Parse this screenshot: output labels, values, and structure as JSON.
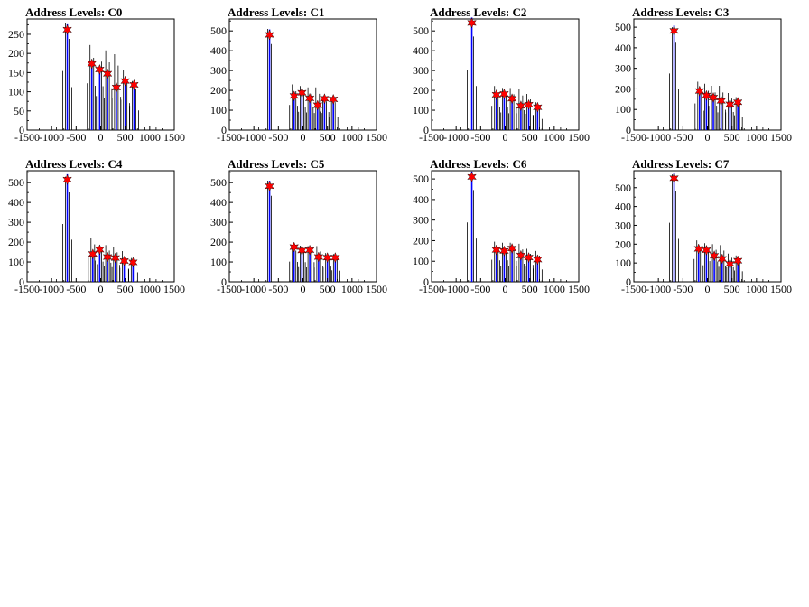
{
  "colors": {
    "background": "#ffffff",
    "fit_line": "#0000ff",
    "raw_histogram": "#000000",
    "peak_marker": "#ff0000"
  },
  "chart_data": [
    {
      "type": "bar",
      "title": "Address Levels: C0",
      "xlim": [
        -1500,
        1500
      ],
      "ylim": [
        0,
        290
      ],
      "xticks": [
        -1500,
        -1000,
        -500,
        0,
        500,
        1000,
        1500
      ],
      "xtick_labels": [
        "-1500",
        "-1000",
        "-500",
        "0",
        "500",
        "1000",
        "1500"
      ],
      "yticks": [
        0,
        50,
        100,
        150,
        200,
        250
      ],
      "ytick_labels": [
        "0",
        "50",
        "100",
        "150",
        "200",
        "250"
      ],
      "peaks": [
        {
          "x": -680,
          "y": 262
        },
        {
          "x": -180,
          "y": 173
        },
        {
          "x": -20,
          "y": 158
        },
        {
          "x": 140,
          "y": 147
        },
        {
          "x": 320,
          "y": 111
        },
        {
          "x": 500,
          "y": 128
        },
        {
          "x": 680,
          "y": 118
        }
      ],
      "raw_max": [
        280,
        222,
        210,
        208,
        198,
        158,
        128
      ]
    },
    {
      "type": "bar",
      "title": "Address Levels: C1",
      "xlim": [
        -1500,
        1500
      ],
      "ylim": [
        0,
        560
      ],
      "xticks": [
        -1500,
        -1000,
        -500,
        0,
        500,
        1000,
        1500
      ],
      "xtick_labels": [
        "-1500",
        "-1000",
        "-500",
        "0",
        "500",
        "1000",
        "1500"
      ],
      "yticks": [
        0,
        100,
        200,
        300,
        400,
        500
      ],
      "ytick_labels": [
        "0",
        "100",
        "200",
        "300",
        "400",
        "500"
      ],
      "peaks": [
        {
          "x": -680,
          "y": 480
        },
        {
          "x": -180,
          "y": 172
        },
        {
          "x": -20,
          "y": 188
        },
        {
          "x": 140,
          "y": 160
        },
        {
          "x": 300,
          "y": 125
        },
        {
          "x": 440,
          "y": 158
        },
        {
          "x": 620,
          "y": 155
        }
      ],
      "raw_max": [
        510,
        230,
        222,
        215,
        215,
        170,
        165
      ]
    },
    {
      "type": "bar",
      "title": "Address Levels: C2",
      "xlim": [
        -1500,
        1500
      ],
      "ylim": [
        0,
        560
      ],
      "xticks": [
        -1500,
        -1000,
        -500,
        0,
        500,
        1000,
        1500
      ],
      "xtick_labels": [
        "-1500",
        "-1000",
        "-500",
        "0",
        "500",
        "1000",
        "1500"
      ],
      "yticks": [
        0,
        100,
        200,
        300,
        400,
        500
      ],
      "ytick_labels": [
        "0",
        "100",
        "200",
        "300",
        "400",
        "500"
      ],
      "peaks": [
        {
          "x": -680,
          "y": 540
        },
        {
          "x": -180,
          "y": 178
        },
        {
          "x": -20,
          "y": 182
        },
        {
          "x": 140,
          "y": 158
        },
        {
          "x": 320,
          "y": 122
        },
        {
          "x": 480,
          "y": 128
        },
        {
          "x": 660,
          "y": 115
        }
      ],
      "raw_max": [
        555,
        222,
        212,
        212,
        205,
        182,
        140
      ]
    },
    {
      "type": "bar",
      "title": "Address Levels: C3",
      "xlim": [
        -1500,
        1500
      ],
      "ylim": [
        0,
        540
      ],
      "xticks": [
        -1500,
        -1000,
        -500,
        0,
        500,
        1000,
        1500
      ],
      "xtick_labels": [
        "-1500",
        "-1000",
        "-500",
        "0",
        "500",
        "1000",
        "1500"
      ],
      "yticks": [
        0,
        100,
        200,
        300,
        400,
        500
      ],
      "ytick_labels": [
        "0",
        "100",
        "200",
        "300",
        "400",
        "500"
      ],
      "peaks": [
        {
          "x": -680,
          "y": 482
        },
        {
          "x": -160,
          "y": 190
        },
        {
          "x": -20,
          "y": 168
        },
        {
          "x": 120,
          "y": 158
        },
        {
          "x": 280,
          "y": 142
        },
        {
          "x": 460,
          "y": 125
        },
        {
          "x": 620,
          "y": 135
        }
      ],
      "raw_max": [
        500,
        235,
        225,
        215,
        215,
        180,
        160
      ]
    },
    {
      "type": "bar",
      "title": "Address Levels: C4",
      "xlim": [
        -1500,
        1500
      ],
      "ylim": [
        0,
        560
      ],
      "xticks": [
        -1500,
        -1000,
        -500,
        0,
        500,
        1000,
        1500
      ],
      "xtick_labels": [
        "-1500",
        "-1000",
        "-500",
        "0",
        "500",
        "1000",
        "1500"
      ],
      "yticks": [
        0,
        100,
        200,
        300,
        400,
        500
      ],
      "ytick_labels": [
        "0",
        "100",
        "200",
        "300",
        "400",
        "500"
      ],
      "peaks": [
        {
          "x": -680,
          "y": 515
        },
        {
          "x": -160,
          "y": 140
        },
        {
          "x": -20,
          "y": 162
        },
        {
          "x": 140,
          "y": 125
        },
        {
          "x": 300,
          "y": 120
        },
        {
          "x": 480,
          "y": 105
        },
        {
          "x": 660,
          "y": 98
        }
      ],
      "raw_max": [
        530,
        222,
        195,
        185,
        175,
        155,
        120
      ]
    },
    {
      "type": "bar",
      "title": "Address Levels: C5",
      "xlim": [
        -1500,
        1500
      ],
      "ylim": [
        0,
        560
      ],
      "xticks": [
        -1500,
        -1000,
        -500,
        0,
        500,
        1000,
        1500
      ],
      "xtick_labels": [
        "-1500",
        "-1000",
        "-500",
        "0",
        "500",
        "1000",
        "1500"
      ],
      "yticks": [
        0,
        100,
        200,
        300,
        400,
        500
      ],
      "ytick_labels": [
        "0",
        "100",
        "200",
        "300",
        "400",
        "500"
      ],
      "peaks": [
        {
          "x": -680,
          "y": 482
        },
        {
          "x": -180,
          "y": 175
        },
        {
          "x": -20,
          "y": 158
        },
        {
          "x": 140,
          "y": 160
        },
        {
          "x": 320,
          "y": 125
        },
        {
          "x": 500,
          "y": 122
        },
        {
          "x": 660,
          "y": 122
        }
      ],
      "raw_max": [
        510,
        185,
        182,
        180,
        180,
        145,
        140
      ]
    },
    {
      "type": "bar",
      "title": "Address Levels: C6",
      "xlim": [
        -1500,
        1500
      ],
      "ylim": [
        0,
        540
      ],
      "xticks": [
        -1500,
        -1000,
        -500,
        0,
        500,
        1000,
        1500
      ],
      "xtick_labels": [
        "-1500",
        "-1000",
        "-500",
        "0",
        "500",
        "1000",
        "1500"
      ],
      "yticks": [
        0,
        100,
        200,
        300,
        400,
        500
      ],
      "ytick_labels": [
        "0",
        "100",
        "200",
        "300",
        "400",
        "500"
      ],
      "peaks": [
        {
          "x": -680,
          "y": 510
        },
        {
          "x": -180,
          "y": 155
        },
        {
          "x": -20,
          "y": 150
        },
        {
          "x": 140,
          "y": 162
        },
        {
          "x": 320,
          "y": 128
        },
        {
          "x": 480,
          "y": 118
        },
        {
          "x": 660,
          "y": 108
        }
      ],
      "raw_max": [
        525,
        195,
        190,
        190,
        185,
        160,
        150
      ]
    },
    {
      "type": "bar",
      "title": "Address Levels: C7",
      "xlim": [
        -1500,
        1500
      ],
      "ylim": [
        0,
        590
      ],
      "xticks": [
        -1500,
        -1000,
        -500,
        0,
        500,
        1000,
        1500
      ],
      "xtick_labels": [
        "-1500",
        "-1000",
        "-500",
        "0",
        "500",
        "1000",
        "1500"
      ],
      "yticks": [
        0,
        100,
        200,
        300,
        400,
        500
      ],
      "ytick_labels": [
        "0",
        "100",
        "200",
        "300",
        "400",
        "500"
      ],
      "peaks": [
        {
          "x": -680,
          "y": 550
        },
        {
          "x": -180,
          "y": 175
        },
        {
          "x": -20,
          "y": 168
        },
        {
          "x": 140,
          "y": 138
        },
        {
          "x": 300,
          "y": 122
        },
        {
          "x": 460,
          "y": 95
        },
        {
          "x": 620,
          "y": 112
        }
      ],
      "raw_max": [
        570,
        220,
        205,
        200,
        195,
        150,
        140
      ]
    }
  ]
}
